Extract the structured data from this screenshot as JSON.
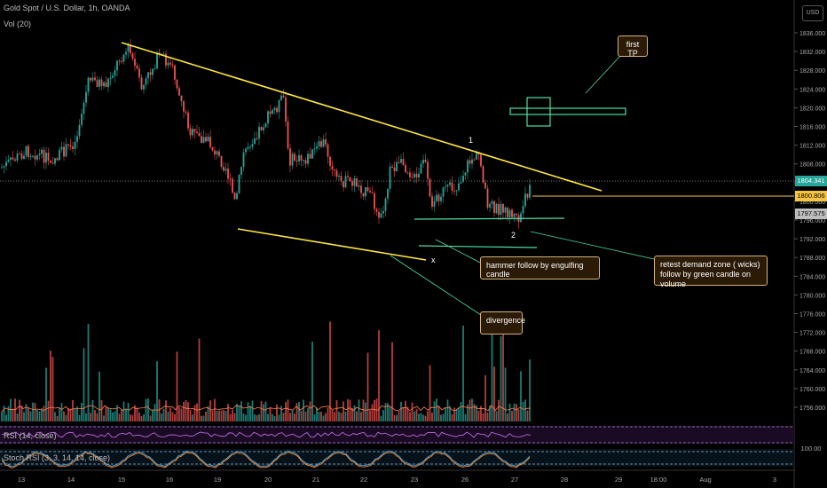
{
  "header": {
    "title": "Gold Spot / U.S. Dollar, 1h, OANDA",
    "volume_label": "Vol (20)"
  },
  "currency_button": "USD",
  "price_axis": {
    "labels": [
      "1836.000",
      "1832.000",
      "1828.000",
      "1824.000",
      "1820.000",
      "1816.000",
      "1812.000",
      "1808.000",
      "1804.000",
      "1800.000",
      "1796.000",
      "1792.000",
      "1788.000",
      "1784.000",
      "1780.000",
      "1776.000",
      "1772.000",
      "1768.000",
      "1764.000",
      "1760.000",
      "1756.000"
    ],
    "current_price": "1804.341",
    "level_price": "1800.806",
    "low_price": "1797.575",
    "rsi_tag": "100.00"
  },
  "time_axis": {
    "labels": [
      "13",
      "14",
      "15",
      "16",
      "19",
      "20",
      "21",
      "22",
      "23",
      "26",
      "27",
      "28",
      "29",
      "18:00",
      "Aug",
      "3"
    ]
  },
  "indicators": {
    "rsi_label": "RSI (14, close)",
    "stoch_label": "Stoch RSI (3, 3, 14, 14, close)"
  },
  "annotations": {
    "first_tp": "first TP",
    "hammer": "hammer follow by engulfing candle",
    "retest_line1": "retest demand zone ( wicks)",
    "retest_line2": "follow by green candle on volume",
    "divergence": "divergence",
    "point_1": "1",
    "point_2": "2",
    "point_x": "x"
  },
  "colors": {
    "up": "#26a69a",
    "down": "#ef5350",
    "trendline": "#ffe83a",
    "zone": "#4ee0a0",
    "level": "#f5c542"
  }
}
